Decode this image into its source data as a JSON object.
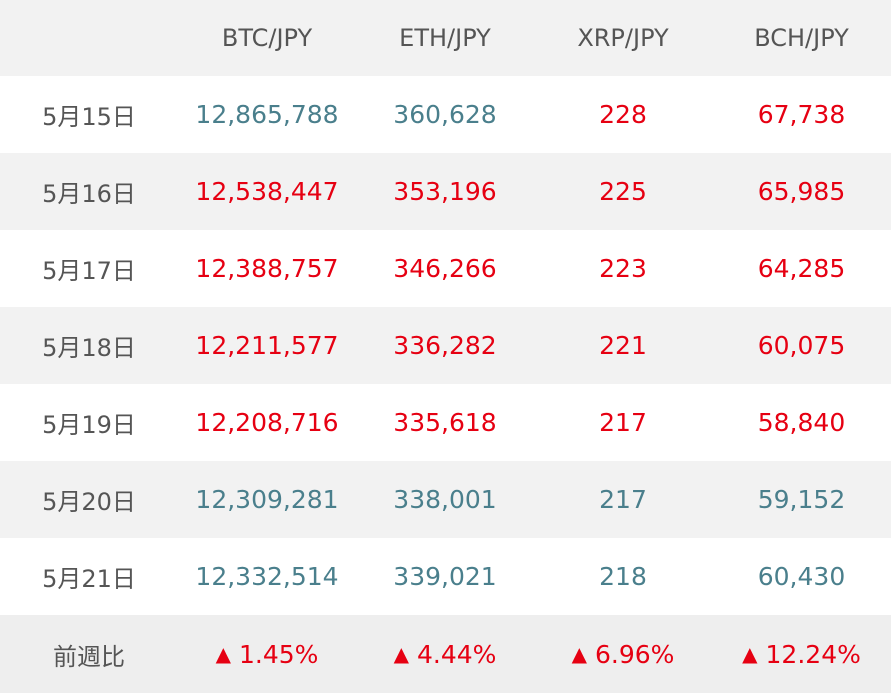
{
  "table": {
    "headers": [
      "",
      "BTC/JPY",
      "ETH/JPY",
      "XRP/JPY",
      "BCH/JPY"
    ],
    "rows": [
      {
        "date": "5月15日",
        "values": [
          "12,865,788",
          "360,628",
          "228",
          "67,738"
        ],
        "trend": [
          "down",
          "down",
          "up",
          "up"
        ]
      },
      {
        "date": "5月16日",
        "values": [
          "12,538,447",
          "353,196",
          "225",
          "65,985"
        ],
        "trend": [
          "up",
          "up",
          "up",
          "up"
        ]
      },
      {
        "date": "5月17日",
        "values": [
          "12,388,757",
          "346,266",
          "223",
          "64,285"
        ],
        "trend": [
          "up",
          "up",
          "up",
          "up"
        ]
      },
      {
        "date": "5月18日",
        "values": [
          "12,211,577",
          "336,282",
          "221",
          "60,075"
        ],
        "trend": [
          "up",
          "up",
          "up",
          "up"
        ]
      },
      {
        "date": "5月19日",
        "values": [
          "12,208,716",
          "335,618",
          "217",
          "58,840"
        ],
        "trend": [
          "up",
          "up",
          "up",
          "up"
        ]
      },
      {
        "date": "5月20日",
        "values": [
          "12,309,281",
          "338,001",
          "217",
          "59,152"
        ],
        "trend": [
          "down",
          "down",
          "down",
          "down"
        ]
      },
      {
        "date": "5月21日",
        "values": [
          "12,332,514",
          "339,021",
          "218",
          "60,430"
        ],
        "trend": [
          "down",
          "down",
          "down",
          "down"
        ]
      }
    ],
    "footer": {
      "label": "前週比",
      "arrow_glyph": "▲",
      "arrow_icon": "triangle-up-icon",
      "values": [
        "1.45%",
        "4.44%",
        "6.96%",
        "12.24%"
      ]
    },
    "colors": {
      "up": "#e60012",
      "down": "#4a7f8c",
      "label": "#555555",
      "row_alt": "#f2f2f2"
    }
  }
}
